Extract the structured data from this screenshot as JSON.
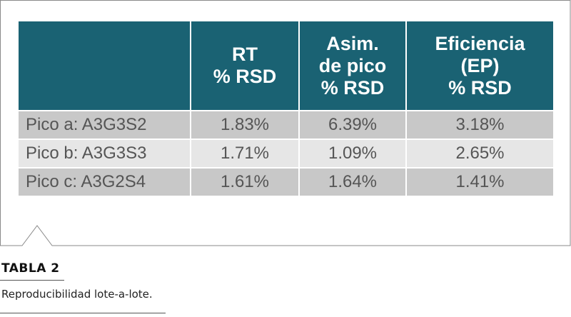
{
  "table": {
    "headers": [
      {
        "lines": []
      },
      {
        "lines": [
          "RT",
          "% RSD"
        ]
      },
      {
        "lines": [
          "Asim.",
          "de pico",
          "% RSD"
        ]
      },
      {
        "lines": [
          "Eficiencia",
          "(EP)",
          "% RSD"
        ]
      }
    ],
    "rows": [
      {
        "label": "Pico a: A3G3S2",
        "rt": "1.83%",
        "asym": "6.39%",
        "eff": "3.18%"
      },
      {
        "label": "Pico b: A3G3S3",
        "rt": "1.71%",
        "asym": "1.09%",
        "eff": "2.65%"
      },
      {
        "label": "Pico c: A3G2S4",
        "rt": "1.61%",
        "asym": "1.64%",
        "eff": "1.41%"
      }
    ]
  },
  "caption": {
    "title": "TABLA 2",
    "text": "Reproducibilidad lote-a-lote."
  },
  "colors": {
    "header_bg": "#1a6273",
    "row_dark": "#c8c8c8",
    "row_light": "#e6e6e6",
    "frame": "#8a8a8a"
  }
}
